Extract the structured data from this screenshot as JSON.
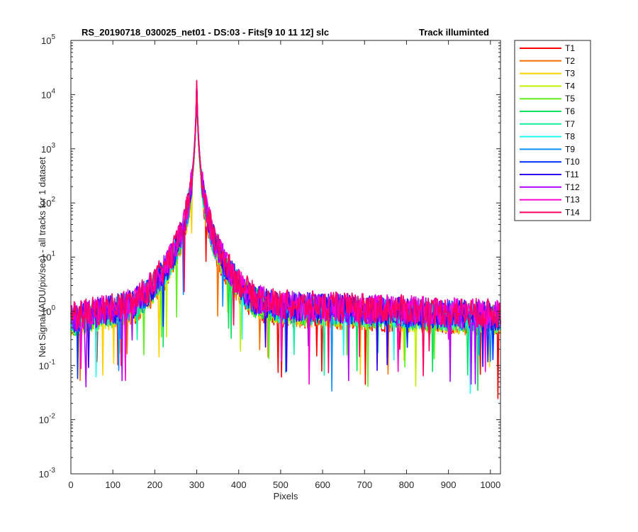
{
  "chart_data": {
    "type": "line",
    "title_left": "RS_20190718_030025_net01 - DS:03 - Fits[9  10  11  12]   slc",
    "title_right": "Track illuminted",
    "xlabel": "Pixels",
    "ylabel": "Net Signal (ADU/pix/sec) - all tracks for 1 dataset",
    "xlim": [
      0,
      1024
    ],
    "ylim": [
      0.001,
      100000
    ],
    "yscale": "log",
    "x_ticks": [
      "0",
      "100",
      "200",
      "300",
      "400",
      "500",
      "600",
      "700",
      "800",
      "900",
      "1000"
    ],
    "y_ticks": [
      {
        "base": "10",
        "exp": "-3"
      },
      {
        "base": "10",
        "exp": "-2"
      },
      {
        "base": "10",
        "exp": "-1"
      },
      {
        "base": "10",
        "exp": "0"
      },
      {
        "base": "10",
        "exp": "1"
      },
      {
        "base": "10",
        "exp": "2"
      },
      {
        "base": "10",
        "exp": "3"
      },
      {
        "base": "10",
        "exp": "4"
      },
      {
        "base": "10",
        "exp": "5"
      }
    ],
    "legend_position": "outside-right",
    "grid": false,
    "profile": {
      "peak_x": 300,
      "peak_value": 15000,
      "value_at_0": 0.7,
      "value_at_250": 2.0,
      "value_at_350": 2.5,
      "value_at_500": 1.2,
      "value_at_1024": 0.8
    },
    "series": [
      {
        "name": "T1",
        "color": "#ff0000"
      },
      {
        "name": "T2",
        "color": "#ff7000"
      },
      {
        "name": "T3",
        "color": "#ffd000"
      },
      {
        "name": "T4",
        "color": "#c0f000"
      },
      {
        "name": "T5",
        "color": "#60f020"
      },
      {
        "name": "T6",
        "color": "#10e060"
      },
      {
        "name": "T7",
        "color": "#10f0a0"
      },
      {
        "name": "T8",
        "color": "#20f8f0"
      },
      {
        "name": "T9",
        "color": "#1090ff"
      },
      {
        "name": "T10",
        "color": "#0030ff"
      },
      {
        "name": "T11",
        "color": "#3000e8"
      },
      {
        "name": "T12",
        "color": "#b000ff"
      },
      {
        "name": "T13",
        "color": "#ff00d0"
      },
      {
        "name": "T14",
        "color": "#ff0060"
      }
    ]
  }
}
